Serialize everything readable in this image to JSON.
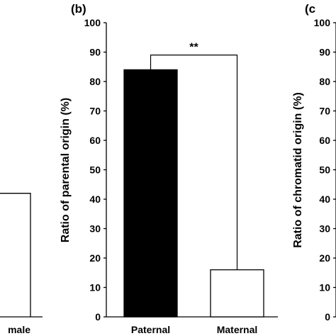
{
  "chart_data": [
    {
      "type": "bar",
      "panel": "",
      "categories": [
        "male"
      ],
      "values": [
        42
      ],
      "ylim": [
        0,
        100
      ],
      "bar_fill": "#ffffff"
    },
    {
      "type": "bar",
      "panel": "(b)",
      "ylabel": "Ratio of parental origin (%)",
      "categories": [
        "Paternal",
        "Maternal"
      ],
      "values": [
        84,
        16
      ],
      "bar_fills": [
        "#000000",
        "#ffffff"
      ],
      "ylim": [
        0,
        100
      ],
      "yticks": [
        0,
        10,
        20,
        30,
        40,
        50,
        60,
        70,
        80,
        90,
        100
      ],
      "significance": {
        "label": "**",
        "between": [
          "Paternal",
          "Maternal"
        ]
      }
    },
    {
      "type": "bar",
      "panel": "(c",
      "ylabel": "Ratio of chromatid origin (%)",
      "ylim": [
        0,
        100
      ],
      "yticks": [
        0,
        10,
        20,
        30,
        40,
        50,
        60,
        70,
        80,
        90,
        100
      ]
    }
  ]
}
